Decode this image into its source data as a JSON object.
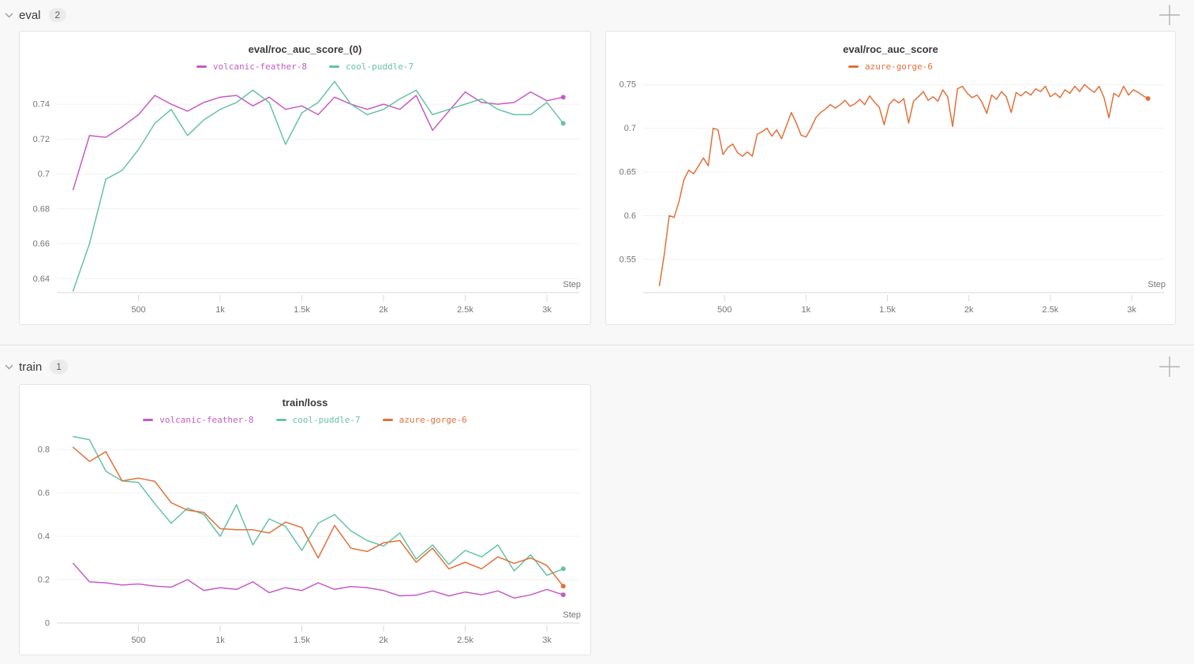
{
  "sections": [
    {
      "label": "eval",
      "count": "2",
      "collapse_icon": "chevron-down-icon",
      "add_icon": "plus-icon"
    },
    {
      "label": "train",
      "count": "1",
      "collapse_icon": "chevron-down-icon",
      "add_icon": "plus-icon"
    }
  ],
  "ui_colors": {
    "page_background": "#f8f8f8",
    "card_border": "#e4e4e4",
    "grid": "#f1f1f1",
    "axis": "#d9d9d9",
    "tick_text": "#757575",
    "icon_gray": "#b3b3b3"
  },
  "chart_data": [
    {
      "type": "line",
      "title": "eval/roc_auc_score_(0)",
      "xlabel": "Step",
      "legend_position": "top",
      "grid": true,
      "xlim": [
        0,
        3140
      ],
      "ylim": [
        0.632,
        0.7545
      ],
      "xticks": [
        {
          "v": 500,
          "label": "500"
        },
        {
          "v": 1000,
          "label": "1k"
        },
        {
          "v": 1500,
          "label": "1.5k"
        },
        {
          "v": 2000,
          "label": "2k"
        },
        {
          "v": 2500,
          "label": "2.5k"
        },
        {
          "v": 3000,
          "label": "3k"
        }
      ],
      "yticks": [
        {
          "v": 0.64,
          "label": "0.64"
        },
        {
          "v": 0.66,
          "label": "0.66"
        },
        {
          "v": 0.68,
          "label": "0.68"
        },
        {
          "v": 0.7,
          "label": "0.7"
        },
        {
          "v": 0.72,
          "label": "0.72"
        },
        {
          "v": 0.74,
          "label": "0.74"
        }
      ],
      "series": [
        {
          "name": "volcanic-feather-8",
          "color": "#C55BC4",
          "end_dot": true,
          "steps": [
            100,
            200,
            300,
            400,
            500,
            600,
            700,
            800,
            900,
            1000,
            1100,
            1200,
            1300,
            1400,
            1500,
            1600,
            1700,
            1800,
            1900,
            2000,
            2100,
            2200,
            2300,
            2400,
            2500,
            2600,
            2700,
            2800,
            2900,
            3000,
            3100
          ],
          "values": [
            0.691,
            0.722,
            0.721,
            0.727,
            0.734,
            0.745,
            0.74,
            0.736,
            0.741,
            0.744,
            0.745,
            0.739,
            0.744,
            0.737,
            0.739,
            0.734,
            0.744,
            0.74,
            0.737,
            0.74,
            0.737,
            0.745,
            0.725,
            0.736,
            0.747,
            0.741,
            0.74,
            0.741,
            0.747,
            0.742,
            0.744
          ]
        },
        {
          "name": "cool-puddle-7",
          "color": "#66C2A8",
          "end_dot": true,
          "steps": [
            100,
            200,
            300,
            400,
            500,
            600,
            700,
            800,
            900,
            1000,
            1100,
            1200,
            1300,
            1400,
            1500,
            1600,
            1700,
            1800,
            1900,
            2000,
            2100,
            2200,
            2300,
            2400,
            2500,
            2600,
            2700,
            2800,
            2900,
            3000,
            3100
          ],
          "values": [
            0.633,
            0.66,
            0.697,
            0.702,
            0.714,
            0.729,
            0.737,
            0.722,
            0.731,
            0.737,
            0.741,
            0.748,
            0.741,
            0.717,
            0.735,
            0.741,
            0.753,
            0.74,
            0.734,
            0.737,
            0.743,
            0.748,
            0.734,
            0.737,
            0.74,
            0.743,
            0.737,
            0.734,
            0.734,
            0.741,
            0.729
          ]
        }
      ]
    },
    {
      "type": "line",
      "title": "eval/roc_auc_score",
      "xlabel": "Step",
      "legend_position": "top",
      "grid": true,
      "xlim": [
        0,
        3140
      ],
      "ylim": [
        0.512,
        0.7565
      ],
      "xticks": [
        {
          "v": 500,
          "label": "500"
        },
        {
          "v": 1000,
          "label": "1k"
        },
        {
          "v": 1500,
          "label": "1.5k"
        },
        {
          "v": 2000,
          "label": "2k"
        },
        {
          "v": 2500,
          "label": "2.5k"
        },
        {
          "v": 3000,
          "label": "3k"
        }
      ],
      "yticks": [
        {
          "v": 0.55,
          "label": "0.55"
        },
        {
          "v": 0.6,
          "label": "0.6"
        },
        {
          "v": 0.65,
          "label": "0.65"
        },
        {
          "v": 0.7,
          "label": "0.7"
        },
        {
          "v": 0.75,
          "label": "0.75"
        }
      ],
      "series": [
        {
          "name": "azure-gorge-6",
          "color": "#E2703A",
          "end_dot": true,
          "steps": [
            100,
            130,
            160,
            190,
            220,
            250,
            280,
            310,
            340,
            370,
            400,
            430,
            460,
            490,
            520,
            550,
            580,
            610,
            640,
            670,
            700,
            730,
            760,
            790,
            820,
            850,
            880,
            910,
            940,
            970,
            1000,
            1030,
            1060,
            1090,
            1120,
            1150,
            1180,
            1210,
            1240,
            1270,
            1300,
            1330,
            1360,
            1390,
            1420,
            1450,
            1480,
            1510,
            1540,
            1570,
            1600,
            1630,
            1660,
            1690,
            1720,
            1750,
            1780,
            1810,
            1840,
            1870,
            1900,
            1930,
            1960,
            1990,
            2020,
            2050,
            2080,
            2110,
            2140,
            2170,
            2200,
            2230,
            2260,
            2290,
            2320,
            2350,
            2380,
            2410,
            2440,
            2470,
            2500,
            2530,
            2560,
            2590,
            2620,
            2650,
            2680,
            2710,
            2740,
            2770,
            2800,
            2830,
            2860,
            2890,
            2920,
            2950,
            2980,
            3010,
            3040,
            3070,
            3100
          ],
          "values": [
            0.52,
            0.556,
            0.6,
            0.598,
            0.616,
            0.641,
            0.652,
            0.648,
            0.657,
            0.666,
            0.657,
            0.7,
            0.698,
            0.67,
            0.678,
            0.682,
            0.672,
            0.668,
            0.673,
            0.668,
            0.693,
            0.696,
            0.7,
            0.691,
            0.698,
            0.688,
            0.703,
            0.718,
            0.706,
            0.692,
            0.69,
            0.7,
            0.712,
            0.718,
            0.722,
            0.727,
            0.723,
            0.727,
            0.732,
            0.725,
            0.728,
            0.733,
            0.727,
            0.737,
            0.73,
            0.724,
            0.704,
            0.727,
            0.733,
            0.729,
            0.734,
            0.706,
            0.731,
            0.736,
            0.742,
            0.732,
            0.736,
            0.731,
            0.744,
            0.736,
            0.702,
            0.745,
            0.748,
            0.74,
            0.735,
            0.738,
            0.73,
            0.717,
            0.738,
            0.733,
            0.742,
            0.736,
            0.718,
            0.741,
            0.737,
            0.742,
            0.738,
            0.745,
            0.742,
            0.748,
            0.736,
            0.74,
            0.735,
            0.744,
            0.74,
            0.748,
            0.742,
            0.75,
            0.745,
            0.741,
            0.748,
            0.735,
            0.712,
            0.74,
            0.736,
            0.748,
            0.738,
            0.744,
            0.741,
            0.737,
            0.734
          ]
        }
      ]
    },
    {
      "type": "line",
      "title": "train/loss",
      "xlabel": "Step",
      "legend_position": "top",
      "grid": true,
      "xlim": [
        0,
        3140
      ],
      "ylim": [
        0,
        0.88
      ],
      "xticks": [
        {
          "v": 500,
          "label": "500"
        },
        {
          "v": 1000,
          "label": "1k"
        },
        {
          "v": 1500,
          "label": "1.5k"
        },
        {
          "v": 2000,
          "label": "2k"
        },
        {
          "v": 2500,
          "label": "2.5k"
        },
        {
          "v": 3000,
          "label": "3k"
        }
      ],
      "yticks": [
        {
          "v": 0,
          "label": "0"
        },
        {
          "v": 0.2,
          "label": "0.2"
        },
        {
          "v": 0.4,
          "label": "0.4"
        },
        {
          "v": 0.6,
          "label": "0.6"
        },
        {
          "v": 0.8,
          "label": "0.8"
        }
      ],
      "series": [
        {
          "name": "volcanic-feather-8",
          "color": "#C55BC4",
          "end_dot": true,
          "steps": [
            100,
            200,
            300,
            400,
            500,
            600,
            700,
            800,
            900,
            1000,
            1100,
            1200,
            1300,
            1400,
            1500,
            1600,
            1700,
            1800,
            1900,
            2000,
            2100,
            2200,
            2300,
            2400,
            2500,
            2600,
            2700,
            2800,
            2900,
            3000,
            3100
          ],
          "values": [
            0.275,
            0.19,
            0.185,
            0.175,
            0.18,
            0.17,
            0.165,
            0.2,
            0.15,
            0.163,
            0.155,
            0.19,
            0.14,
            0.163,
            0.15,
            0.185,
            0.155,
            0.168,
            0.163,
            0.15,
            0.125,
            0.128,
            0.148,
            0.125,
            0.143,
            0.13,
            0.148,
            0.115,
            0.13,
            0.155,
            0.13
          ]
        },
        {
          "name": "cool-puddle-7",
          "color": "#66C2A8",
          "end_dot": true,
          "steps": [
            100,
            200,
            300,
            400,
            500,
            600,
            700,
            800,
            900,
            1000,
            1100,
            1200,
            1300,
            1400,
            1500,
            1600,
            1700,
            1800,
            1900,
            2000,
            2100,
            2200,
            2300,
            2400,
            2500,
            2600,
            2700,
            2800,
            2900,
            3000,
            3100
          ],
          "values": [
            0.86,
            0.845,
            0.7,
            0.655,
            0.648,
            0.55,
            0.46,
            0.53,
            0.5,
            0.4,
            0.545,
            0.36,
            0.48,
            0.445,
            0.335,
            0.46,
            0.5,
            0.425,
            0.38,
            0.355,
            0.415,
            0.295,
            0.36,
            0.27,
            0.335,
            0.305,
            0.36,
            0.24,
            0.315,
            0.22,
            0.25
          ]
        },
        {
          "name": "azure-gorge-6",
          "color": "#E2703A",
          "end_dot": true,
          "steps": [
            100,
            200,
            300,
            400,
            500,
            600,
            700,
            800,
            900,
            1000,
            1100,
            1200,
            1300,
            1400,
            1500,
            1600,
            1700,
            1800,
            1900,
            2000,
            2100,
            2200,
            2300,
            2400,
            2500,
            2600,
            2700,
            2800,
            2900,
            3000,
            3100
          ],
          "values": [
            0.81,
            0.745,
            0.79,
            0.655,
            0.668,
            0.653,
            0.555,
            0.52,
            0.51,
            0.435,
            0.43,
            0.43,
            0.415,
            0.465,
            0.44,
            0.3,
            0.45,
            0.345,
            0.33,
            0.37,
            0.38,
            0.28,
            0.345,
            0.25,
            0.28,
            0.25,
            0.305,
            0.275,
            0.3,
            0.265,
            0.17
          ]
        }
      ]
    }
  ]
}
